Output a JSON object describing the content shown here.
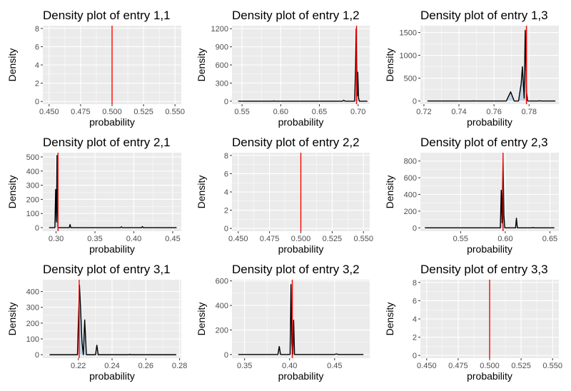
{
  "chart_data": [
    {
      "type": "line",
      "title": "Density plot of entry 1,1",
      "xlabel": "probability",
      "ylabel": "Density",
      "xlim": [
        0.445,
        0.555
      ],
      "ylim": [
        -0.3,
        8.3
      ],
      "xticks": [
        0.45,
        0.475,
        0.5,
        0.525,
        0.55
      ],
      "xtick_labels": [
        "0.450",
        "0.475",
        "0.500",
        "0.525",
        "0.550"
      ],
      "yticks": [
        0,
        2,
        4,
        6,
        8
      ],
      "ytick_labels": [
        "0",
        "2",
        "4",
        "6",
        "8"
      ],
      "vline": 0.5,
      "density": []
    },
    {
      "type": "line",
      "title": "Density plot of entry 1,2",
      "xlabel": "probability",
      "ylabel": "Density",
      "xlim": [
        0.537,
        0.715
      ],
      "ylim": [
        -50,
        1250
      ],
      "xticks": [
        0.55,
        0.6,
        0.65,
        0.7
      ],
      "xtick_labels": [
        "0.55",
        "0.60",
        "0.65",
        "0.70"
      ],
      "yticks": [
        0,
        300,
        600,
        900,
        1200
      ],
      "ytick_labels": [
        "0",
        "300",
        "600",
        "900",
        "1200"
      ],
      "vline": 0.698,
      "density": [
        {
          "x": 0.545,
          "y": 0
        },
        {
          "x": 0.59,
          "y": 0
        },
        {
          "x": 0.591,
          "y": 4
        },
        {
          "x": 0.592,
          "y": 0
        },
        {
          "x": 0.64,
          "y": 0
        },
        {
          "x": 0.68,
          "y": 0
        },
        {
          "x": 0.6815,
          "y": 15
        },
        {
          "x": 0.683,
          "y": 0
        },
        {
          "x": 0.6955,
          "y": 0
        },
        {
          "x": 0.6968,
          "y": 600
        },
        {
          "x": 0.6975,
          "y": 1200
        },
        {
          "x": 0.6985,
          "y": 400
        },
        {
          "x": 0.699,
          "y": 90
        },
        {
          "x": 0.6996,
          "y": 480
        },
        {
          "x": 0.7005,
          "y": 60
        },
        {
          "x": 0.7015,
          "y": 0
        },
        {
          "x": 0.712,
          "y": 0
        }
      ]
    },
    {
      "type": "line",
      "title": "Density plot of entry 1,3",
      "xlabel": "probability",
      "ylabel": "Density",
      "xlim": [
        0.718,
        0.797
      ],
      "ylim": [
        -70,
        1650
      ],
      "xticks": [
        0.72,
        0.74,
        0.76,
        0.78
      ],
      "xtick_labels": [
        "0.72",
        "0.74",
        "0.76",
        "0.78"
      ],
      "yticks": [
        0,
        500,
        1000,
        1500
      ],
      "ytick_labels": [
        "0",
        "500",
        "1000",
        "1500"
      ],
      "vline": 0.7785,
      "density": [
        {
          "x": 0.722,
          "y": 0
        },
        {
          "x": 0.748,
          "y": 0
        },
        {
          "x": 0.7485,
          "y": 3
        },
        {
          "x": 0.749,
          "y": 0
        },
        {
          "x": 0.767,
          "y": 0
        },
        {
          "x": 0.7695,
          "y": 200
        },
        {
          "x": 0.7715,
          "y": 0
        },
        {
          "x": 0.774,
          "y": 0
        },
        {
          "x": 0.7755,
          "y": 380
        },
        {
          "x": 0.7762,
          "y": 750
        },
        {
          "x": 0.7772,
          "y": 60
        },
        {
          "x": 0.7778,
          "y": 1550
        },
        {
          "x": 0.7785,
          "y": 200
        },
        {
          "x": 0.7792,
          "y": 0
        },
        {
          "x": 0.785,
          "y": 0
        },
        {
          "x": 0.786,
          "y": 4
        },
        {
          "x": 0.787,
          "y": 0
        },
        {
          "x": 0.795,
          "y": 0
        }
      ]
    },
    {
      "type": "line",
      "title": "Density plot of entry 2,1",
      "xlabel": "probability",
      "ylabel": "Density",
      "xlim": [
        0.283,
        0.461
      ],
      "ylim": [
        -25,
        530
      ],
      "xticks": [
        0.3,
        0.35,
        0.4,
        0.45
      ],
      "xtick_labels": [
        "0.30",
        "0.35",
        "0.40",
        "0.45"
      ],
      "yticks": [
        0,
        100,
        200,
        300,
        400,
        500
      ],
      "ytick_labels": [
        "0",
        "100",
        "200",
        "300",
        "400",
        "500"
      ],
      "vline": 0.3025,
      "density": [
        {
          "x": 0.291,
          "y": 0
        },
        {
          "x": 0.2985,
          "y": 0
        },
        {
          "x": 0.2995,
          "y": 270
        },
        {
          "x": 0.3005,
          "y": 40
        },
        {
          "x": 0.3012,
          "y": 510
        },
        {
          "x": 0.302,
          "y": 90
        },
        {
          "x": 0.3025,
          "y": 0
        },
        {
          "x": 0.317,
          "y": 0
        },
        {
          "x": 0.318,
          "y": 22
        },
        {
          "x": 0.319,
          "y": 0
        },
        {
          "x": 0.35,
          "y": 0
        },
        {
          "x": 0.383,
          "y": 0
        },
        {
          "x": 0.384,
          "y": 6
        },
        {
          "x": 0.385,
          "y": 0
        },
        {
          "x": 0.41,
          "y": 0
        },
        {
          "x": 0.411,
          "y": 8
        },
        {
          "x": 0.412,
          "y": 0
        },
        {
          "x": 0.455,
          "y": 0
        }
      ]
    },
    {
      "type": "line",
      "title": "Density plot of entry 2,2",
      "xlabel": "probability",
      "ylabel": "Density",
      "xlim": [
        0.445,
        0.555
      ],
      "ylim": [
        -0.3,
        8.3
      ],
      "xticks": [
        0.45,
        0.475,
        0.5,
        0.525,
        0.55
      ],
      "xtick_labels": [
        "0.450",
        "0.475",
        "0.500",
        "0.525",
        "0.550"
      ],
      "yticks": [
        0,
        2,
        4,
        6,
        8
      ],
      "ytick_labels": [
        "0",
        "2",
        "4",
        "6",
        "8"
      ],
      "vline": 0.5,
      "density": []
    },
    {
      "type": "line",
      "title": "Density plot of entry 2,3",
      "xlabel": "probability",
      "ylabel": "Density",
      "xlim": [
        0.505,
        0.66
      ],
      "ylim": [
        -40,
        900
      ],
      "xticks": [
        0.55,
        0.6,
        0.65
      ],
      "xtick_labels": [
        "0.55",
        "0.60",
        "0.65"
      ],
      "yticks": [
        0,
        200,
        400,
        600,
        800
      ],
      "ytick_labels": [
        "0",
        "200",
        "400",
        "600",
        "800"
      ],
      "vline": 0.5975,
      "density": [
        {
          "x": 0.51,
          "y": 0
        },
        {
          "x": 0.5945,
          "y": 0
        },
        {
          "x": 0.5955,
          "y": 450
        },
        {
          "x": 0.5965,
          "y": 60
        },
        {
          "x": 0.5975,
          "y": 830
        },
        {
          "x": 0.5985,
          "y": 150
        },
        {
          "x": 0.5995,
          "y": 0
        },
        {
          "x": 0.6115,
          "y": 0
        },
        {
          "x": 0.6125,
          "y": 115
        },
        {
          "x": 0.6135,
          "y": 0
        },
        {
          "x": 0.63,
          "y": 0
        },
        {
          "x": 0.631,
          "y": 5
        },
        {
          "x": 0.632,
          "y": 0
        },
        {
          "x": 0.655,
          "y": 0
        }
      ]
    },
    {
      "type": "line",
      "title": "Density plot of entry 3,1",
      "xlabel": "probability",
      "ylabel": "Density",
      "xlim": [
        0.199,
        0.281
      ],
      "ylim": [
        -22,
        475
      ],
      "xticks": [
        0.22,
        0.24,
        0.26,
        0.28
      ],
      "xtick_labels": [
        "0.22",
        "0.24",
        "0.26",
        "0.28"
      ],
      "yticks": [
        0,
        100,
        200,
        300,
        400
      ],
      "ytick_labels": [
        "0",
        "100",
        "200",
        "300",
        "400"
      ],
      "vline": 0.2205,
      "density": [
        {
          "x": 0.203,
          "y": 0
        },
        {
          "x": 0.2195,
          "y": 0
        },
        {
          "x": 0.2207,
          "y": 440
        },
        {
          "x": 0.2212,
          "y": 330
        },
        {
          "x": 0.2222,
          "y": 80
        },
        {
          "x": 0.223,
          "y": 0
        },
        {
          "x": 0.2238,
          "y": 220
        },
        {
          "x": 0.2248,
          "y": 0
        },
        {
          "x": 0.2302,
          "y": 0
        },
        {
          "x": 0.231,
          "y": 60
        },
        {
          "x": 0.2318,
          "y": 0
        },
        {
          "x": 0.25,
          "y": 0
        },
        {
          "x": 0.2505,
          "y": 3
        },
        {
          "x": 0.251,
          "y": 0
        },
        {
          "x": 0.278,
          "y": 0
        }
      ]
    },
    {
      "type": "line",
      "title": "Density plot of entry 3,2",
      "xlabel": "probability",
      "ylabel": "Density",
      "xlim": [
        0.336,
        0.489
      ],
      "ylim": [
        -30,
        610
      ],
      "xticks": [
        0.35,
        0.4,
        0.45
      ],
      "xtick_labels": [
        "0.35",
        "0.40",
        "0.45"
      ],
      "yticks": [
        0,
        200,
        400,
        600
      ],
      "ytick_labels": [
        "0",
        "200",
        "400",
        "600"
      ],
      "vline": 0.403,
      "density": [
        {
          "x": 0.343,
          "y": 0
        },
        {
          "x": 0.387,
          "y": 0
        },
        {
          "x": 0.3885,
          "y": 65
        },
        {
          "x": 0.39,
          "y": 0
        },
        {
          "x": 0.4005,
          "y": 0
        },
        {
          "x": 0.4015,
          "y": 570
        },
        {
          "x": 0.4025,
          "y": 90
        },
        {
          "x": 0.4035,
          "y": 0
        },
        {
          "x": 0.4045,
          "y": 280
        },
        {
          "x": 0.4055,
          "y": 0
        },
        {
          "x": 0.45,
          "y": 0
        },
        {
          "x": 0.452,
          "y": 5
        },
        {
          "x": 0.454,
          "y": 0
        },
        {
          "x": 0.482,
          "y": 0
        }
      ]
    },
    {
      "type": "line",
      "title": "Density plot of entry 3,3",
      "xlabel": "probability",
      "ylabel": "Density",
      "xlim": [
        0.445,
        0.555
      ],
      "ylim": [
        -0.3,
        8.3
      ],
      "xticks": [
        0.45,
        0.475,
        0.5,
        0.525,
        0.55
      ],
      "xtick_labels": [
        "0.450",
        "0.475",
        "0.500",
        "0.525",
        "0.550"
      ],
      "yticks": [
        0,
        2,
        4,
        6,
        8
      ],
      "ytick_labels": [
        "0",
        "2",
        "4",
        "6",
        "8"
      ],
      "vline": 0.5,
      "density": []
    }
  ],
  "colors": {
    "panel_background": "#EBEBEB",
    "grid": "#FFFFFF",
    "density_line": "#000000",
    "density_area_hint": "#4A86C8",
    "reference_line": "#FF0000",
    "tick_text": "#4D4D4D"
  }
}
